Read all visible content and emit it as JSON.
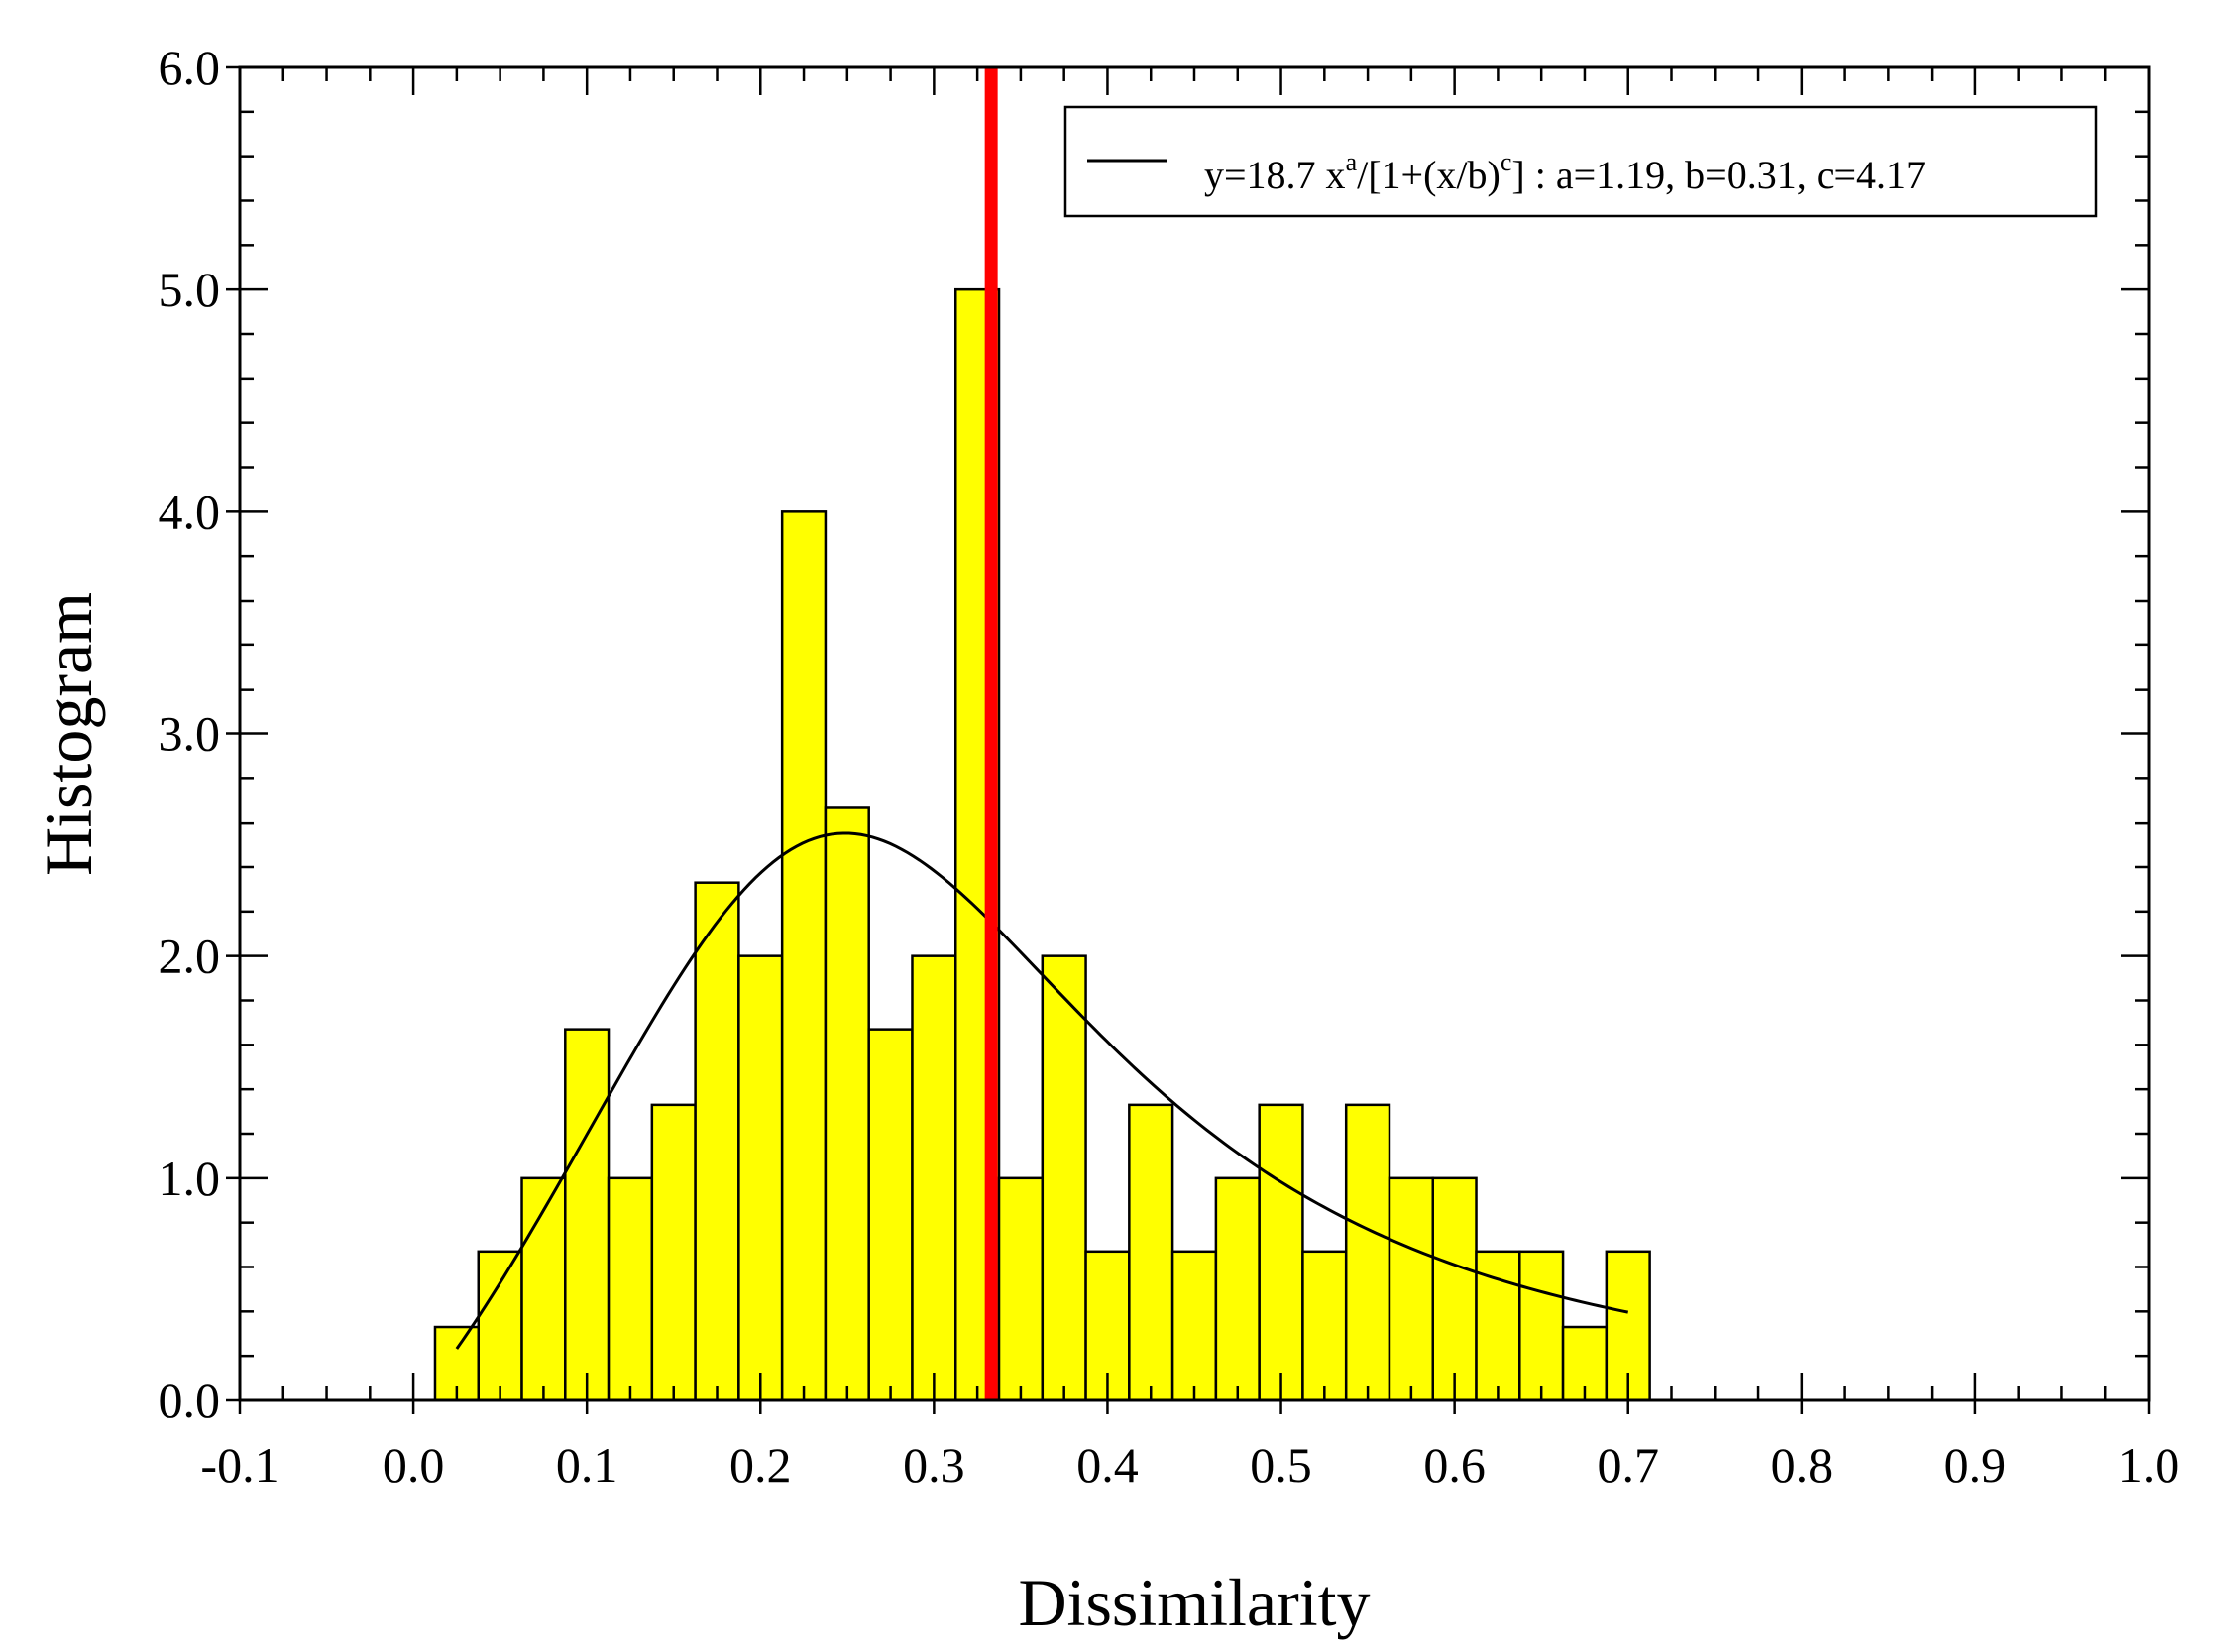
{
  "chart_data": {
    "type": "bar",
    "xlabel": "Dissimilarity",
    "ylabel": "Histogram",
    "xlim": [
      -0.1,
      1.0
    ],
    "ylim": [
      0.0,
      6.0
    ],
    "grid": false,
    "legend_placement": "top-right",
    "x_ticks": [
      "-0.1",
      "0.0",
      "0.1",
      "0.2",
      "0.3",
      "0.4",
      "0.5",
      "0.6",
      "0.7",
      "0.8",
      "0.9",
      "1.0"
    ],
    "y_ticks": [
      "0.0",
      "1.0",
      "2.0",
      "3.0",
      "4.0",
      "5.0",
      "6.0"
    ],
    "bin_width": 0.025,
    "bins": [
      {
        "center": 0.025,
        "value": 0.33
      },
      {
        "center": 0.05,
        "value": 0.67
      },
      {
        "center": 0.075,
        "value": 1.0
      },
      {
        "center": 0.1,
        "value": 1.67
      },
      {
        "center": 0.125,
        "value": 1.0
      },
      {
        "center": 0.15,
        "value": 1.33
      },
      {
        "center": 0.175,
        "value": 2.33
      },
      {
        "center": 0.2,
        "value": 2.0
      },
      {
        "center": 0.225,
        "value": 4.0
      },
      {
        "center": 0.25,
        "value": 2.67
      },
      {
        "center": 0.275,
        "value": 1.67
      },
      {
        "center": 0.3,
        "value": 2.0
      },
      {
        "center": 0.325,
        "value": 5.0
      },
      {
        "center": 0.35,
        "value": 1.0
      },
      {
        "center": 0.375,
        "value": 2.0
      },
      {
        "center": 0.4,
        "value": 0.67
      },
      {
        "center": 0.425,
        "value": 1.33
      },
      {
        "center": 0.45,
        "value": 0.67
      },
      {
        "center": 0.475,
        "value": 1.0
      },
      {
        "center": 0.5,
        "value": 1.33
      },
      {
        "center": 0.525,
        "value": 0.67
      },
      {
        "center": 0.55,
        "value": 1.33
      },
      {
        "center": 0.575,
        "value": 1.0
      },
      {
        "center": 0.6,
        "value": 1.0
      },
      {
        "center": 0.625,
        "value": 0.67
      },
      {
        "center": 0.65,
        "value": 0.67
      },
      {
        "center": 0.675,
        "value": 0.33
      },
      {
        "center": 0.7,
        "value": 0.67
      }
    ],
    "bar_color": "#ffff00",
    "fit_curve": {
      "legend": {
        "prefix": "y=18.7 x",
        "sup_a": "a",
        "middle": "/[1+(x/b)",
        "sup_c": "c",
        "suffix": "] : a=1.19, b=0.31, c=4.17"
      },
      "amplitude": 18.7,
      "a": 1.19,
      "b": 0.31,
      "c": 4.17,
      "x_range": [
        0.025,
        0.7
      ],
      "color": "#000000"
    },
    "reference_line": {
      "x": 0.333,
      "color": "#ff0000"
    }
  }
}
